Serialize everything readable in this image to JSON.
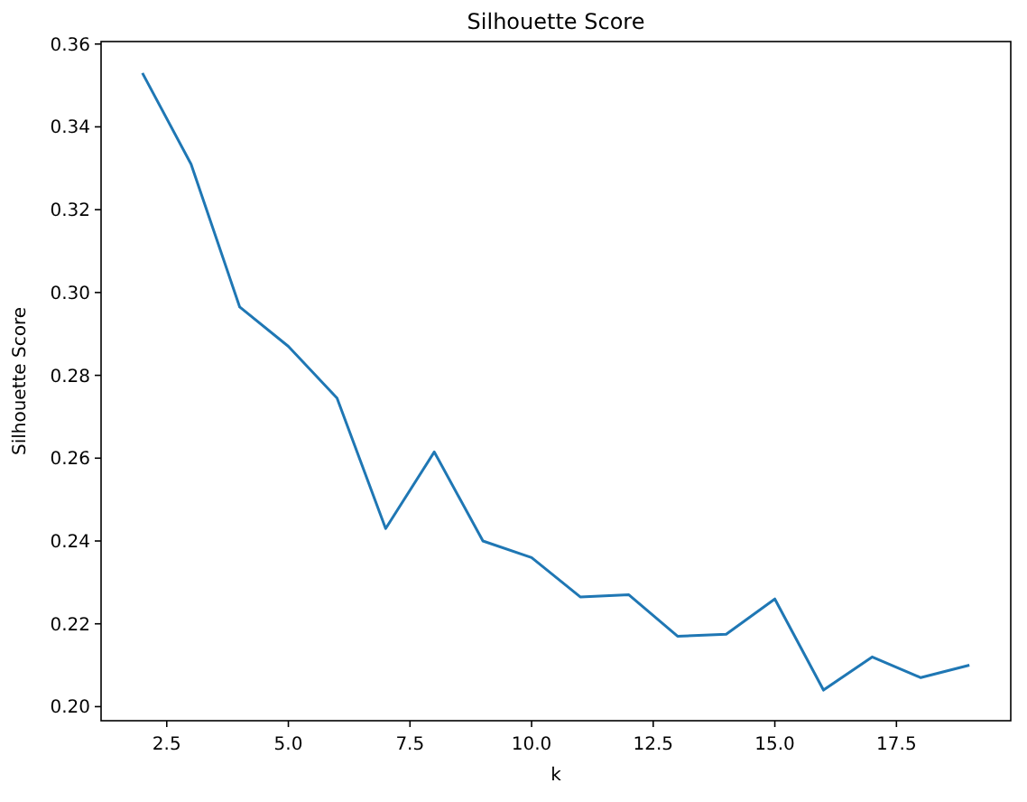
{
  "chart_data": {
    "type": "line",
    "title": "Silhouette Score",
    "xlabel": "k",
    "ylabel": "Silhouette Score",
    "x": [
      2,
      3,
      4,
      5,
      6,
      7,
      8,
      9,
      10,
      11,
      12,
      13,
      14,
      15,
      16,
      17,
      18,
      19
    ],
    "series": [
      {
        "color": "#1f77b4",
        "values": [
          0.353,
          0.331,
          0.2965,
          0.287,
          0.2745,
          0.243,
          0.2615,
          0.24,
          0.236,
          0.2265,
          0.227,
          0.217,
          0.2175,
          0.226,
          0.204,
          0.212,
          0.207,
          0.21
        ]
      }
    ],
    "xlim": [
      1.15,
      19.85
    ],
    "xticks": [
      {
        "value": 2.5,
        "label": "2.5"
      },
      {
        "value": 5,
        "label": "5.0"
      },
      {
        "value": 7.5,
        "label": "7.5"
      },
      {
        "value": 10,
        "label": "10.0"
      },
      {
        "value": 12.5,
        "label": "12.5"
      },
      {
        "value": 15,
        "label": "15.0"
      },
      {
        "value": 17.5,
        "label": "17.5"
      }
    ],
    "ylim": [
      0.1966,
      0.3606
    ],
    "yticks": [
      {
        "value": 0.2,
        "label": "0.20"
      },
      {
        "value": 0.22,
        "label": "0.22"
      },
      {
        "value": 0.24,
        "label": "0.24"
      },
      {
        "value": 0.26,
        "label": "0.26"
      },
      {
        "value": 0.28,
        "label": "0.28"
      },
      {
        "value": 0.3,
        "label": "0.30"
      },
      {
        "value": 0.32,
        "label": "0.32"
      },
      {
        "value": 0.34,
        "label": "0.34"
      },
      {
        "value": 0.36,
        "label": "0.36"
      }
    ],
    "grid": false,
    "line_style": "solid"
  }
}
